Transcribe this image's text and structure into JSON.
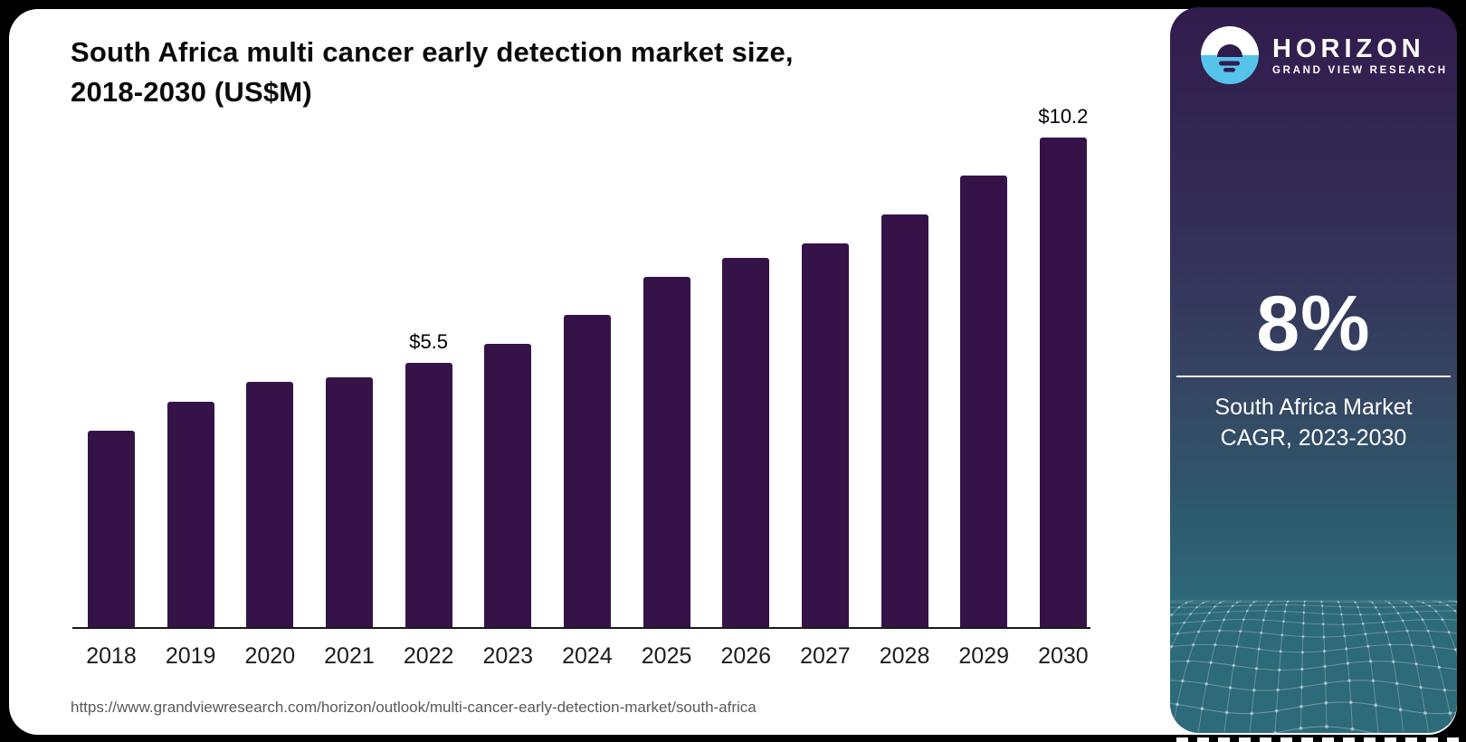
{
  "header": {
    "title_line1": "South Africa multi cancer early detection market size,",
    "title_line2": "2018-2030 (US$M)"
  },
  "chart_data": {
    "type": "bar",
    "title": "South Africa multi cancer early detection market size, 2018-2030 (US$M)",
    "unit": "US$M",
    "categories": [
      "2018",
      "2019",
      "2020",
      "2021",
      "2022",
      "2023",
      "2024",
      "2025",
      "2026",
      "2027",
      "2028",
      "2029",
      "2030"
    ],
    "values": [
      4.1,
      4.7,
      5.1,
      5.2,
      5.5,
      5.9,
      6.5,
      7.3,
      7.7,
      8.0,
      8.6,
      9.4,
      10.2
    ],
    "data_labels": {
      "2022": "$5.5",
      "2030": "$10.2"
    },
    "ylim": [
      0,
      10.8
    ],
    "grid": false,
    "legend": "none",
    "bar_color": "#351349",
    "axis_color": "#1a1a1a"
  },
  "source": {
    "url": "https://www.grandviewresearch.com/horizon/outlook/multi-cancer-early-detection-market/south-africa"
  },
  "sidebar": {
    "brand": {
      "name": "HORIZON",
      "tagline": "GRAND VIEW RESEARCH",
      "icon": "sun-horizon-icon",
      "icon_colors": {
        "top": "#ffffff",
        "bottom": "#56c3ea",
        "dark": "#2f1b4d"
      }
    },
    "stat": {
      "value": "8%",
      "label_line1": "South Africa Market",
      "label_line2": "CAGR, 2023-2030"
    },
    "colors": {
      "gradient_top": "#311b4d",
      "gradient_middle": "#354562",
      "gradient_bottom": "#2d6b7a",
      "mesh_line": "rgba(255,255,255,0.3)"
    }
  }
}
